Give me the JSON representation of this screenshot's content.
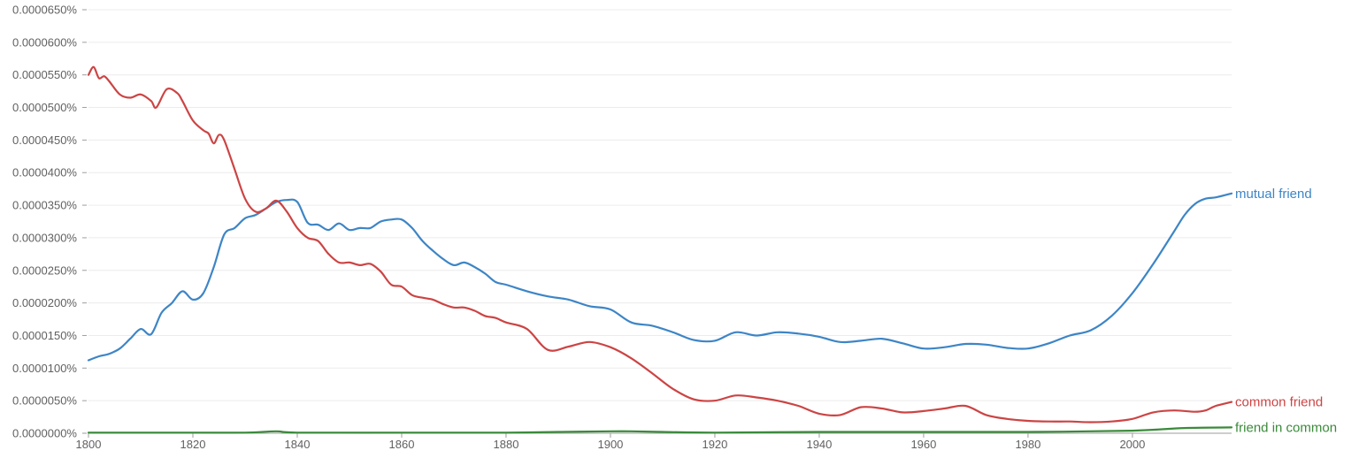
{
  "chart_data": {
    "type": "line",
    "title": "",
    "xlabel": "",
    "ylabel": "",
    "xlim": [
      1800,
      2019
    ],
    "ylim": [
      0,
      6.5e-07
    ],
    "x_ticks": [
      "1800",
      "1820",
      "1840",
      "1860",
      "1880",
      "1900",
      "1920",
      "1940",
      "1960",
      "1980",
      "2000"
    ],
    "y_ticks": [
      "0.0000000%",
      "0.0000050%",
      "0.0000100%",
      "0.0000150%",
      "0.0000200%",
      "0.0000250%",
      "0.0000300%",
      "0.0000350%",
      "0.0000400%",
      "0.0000450%",
      "0.0000500%",
      "0.0000550%",
      "0.0000600%",
      "0.0000650%"
    ],
    "grid": true,
    "legend": "labels at right end of each line",
    "colors": {
      "mutual friend": "#3d85c6",
      "common friend": "#cc4444",
      "friend in common": "#3a8a3a"
    },
    "series": [
      {
        "name": "mutual friend",
        "x": [
          1800,
          1802,
          1804,
          1806,
          1808,
          1810,
          1812,
          1814,
          1816,
          1818,
          1820,
          1822,
          1824,
          1826,
          1828,
          1830,
          1832,
          1834,
          1836,
          1838,
          1840,
          1842,
          1844,
          1846,
          1848,
          1850,
          1852,
          1854,
          1856,
          1858,
          1860,
          1862,
          1864,
          1866,
          1868,
          1870,
          1872,
          1874,
          1876,
          1878,
          1880,
          1884,
          1888,
          1892,
          1896,
          1900,
          1904,
          1908,
          1912,
          1916,
          1920,
          1924,
          1928,
          1932,
          1936,
          1940,
          1944,
          1948,
          1952,
          1956,
          1960,
          1964,
          1968,
          1972,
          1976,
          1980,
          1984,
          1988,
          1992,
          1996,
          2000,
          2004,
          2008,
          2010,
          2012,
          2014,
          2016,
          2019
        ],
        "values": [
          1.12e-07,
          1.18e-07,
          1.22e-07,
          1.3e-07,
          1.45e-07,
          1.6e-07,
          1.52e-07,
          1.85e-07,
          2e-07,
          2.18e-07,
          2.05e-07,
          2.15e-07,
          2.55e-07,
          3.05e-07,
          3.15e-07,
          3.3e-07,
          3.35e-07,
          3.45e-07,
          3.55e-07,
          3.58e-07,
          3.55e-07,
          3.23e-07,
          3.2e-07,
          3.12e-07,
          3.22e-07,
          3.12e-07,
          3.15e-07,
          3.15e-07,
          3.25e-07,
          3.28e-07,
          3.28e-07,
          3.15e-07,
          2.95e-07,
          2.8e-07,
          2.67e-07,
          2.58e-07,
          2.62e-07,
          2.55e-07,
          2.45e-07,
          2.32e-07,
          2.28e-07,
          2.18e-07,
          2.1e-07,
          2.05e-07,
          1.95e-07,
          1.9e-07,
          1.7e-07,
          1.65e-07,
          1.55e-07,
          1.43e-07,
          1.42e-07,
          1.55e-07,
          1.5e-07,
          1.55e-07,
          1.53e-07,
          1.48e-07,
          1.4e-07,
          1.42e-07,
          1.45e-07,
          1.38e-07,
          1.3e-07,
          1.32e-07,
          1.37e-07,
          1.36e-07,
          1.31e-07,
          1.3e-07,
          1.38e-07,
          1.5e-07,
          1.58e-07,
          1.8e-07,
          2.15e-07,
          2.6e-07,
          3.1e-07,
          3.35e-07,
          3.52e-07,
          3.6e-07,
          3.62e-07,
          3.68e-07
        ]
      },
      {
        "name": "common friend",
        "x": [
          1800,
          1801,
          1802,
          1803,
          1804,
          1806,
          1808,
          1810,
          1812,
          1813,
          1815,
          1817,
          1818,
          1820,
          1822,
          1823,
          1824,
          1825,
          1826,
          1828,
          1830,
          1832,
          1834,
          1836,
          1838,
          1840,
          1842,
          1844,
          1846,
          1848,
          1850,
          1852,
          1854,
          1856,
          1858,
          1860,
          1862,
          1864,
          1866,
          1868,
          1870,
          1872,
          1874,
          1876,
          1878,
          1880,
          1884,
          1888,
          1892,
          1896,
          1900,
          1904,
          1908,
          1912,
          1916,
          1920,
          1924,
          1928,
          1932,
          1936,
          1940,
          1944,
          1948,
          1952,
          1956,
          1960,
          1964,
          1968,
          1972,
          1976,
          1980,
          1984,
          1988,
          1992,
          1996,
          2000,
          2004,
          2008,
          2012,
          2014,
          2016,
          2019
        ],
        "values": [
          5.5e-07,
          5.62e-07,
          5.45e-07,
          5.48e-07,
          5.4e-07,
          5.2e-07,
          5.15e-07,
          5.2e-07,
          5.1e-07,
          5e-07,
          5.28e-07,
          5.22e-07,
          5.1e-07,
          4.8e-07,
          4.65e-07,
          4.6e-07,
          4.45e-07,
          4.58e-07,
          4.5e-07,
          4.05e-07,
          3.6e-07,
          3.4e-07,
          3.45e-07,
          3.57e-07,
          3.4e-07,
          3.15e-07,
          3e-07,
          2.95e-07,
          2.75e-07,
          2.62e-07,
          2.62e-07,
          2.58e-07,
          2.6e-07,
          2.48e-07,
          2.28e-07,
          2.25e-07,
          2.12e-07,
          2.08e-07,
          2.05e-07,
          1.98e-07,
          1.93e-07,
          1.93e-07,
          1.88e-07,
          1.8e-07,
          1.77e-07,
          1.7e-07,
          1.6e-07,
          1.28e-07,
          1.33e-07,
          1.4e-07,
          1.32e-07,
          1.15e-07,
          9.2e-08,
          6.8e-08,
          5.2e-08,
          5e-08,
          5.8e-08,
          5.5e-08,
          5e-08,
          4.2e-08,
          3e-08,
          2.8e-08,
          4e-08,
          3.8e-08,
          3.2e-08,
          3.4e-08,
          3.8e-08,
          4.2e-08,
          2.8e-08,
          2.2e-08,
          1.9e-08,
          1.8e-08,
          1.8e-08,
          1.7e-08,
          1.8e-08,
          2.2e-08,
          3.2e-08,
          3.5e-08,
          3.3e-08,
          3.5e-08,
          4.2e-08,
          4.8e-08
        ]
      },
      {
        "name": "friend in common",
        "x": [
          1800,
          1820,
          1830,
          1836,
          1840,
          1860,
          1880,
          1890,
          1900,
          1904,
          1910,
          1920,
          1940,
          1960,
          1980,
          2000,
          2010,
          2019
        ],
        "values": [
          1e-09,
          1e-09,
          1e-09,
          3e-09,
          1e-09,
          1e-09,
          1e-09,
          2e-09,
          3e-09,
          3e-09,
          2e-09,
          1e-09,
          2e-09,
          2e-09,
          2e-09,
          4e-09,
          8e-09,
          9e-09
        ]
      }
    ]
  }
}
